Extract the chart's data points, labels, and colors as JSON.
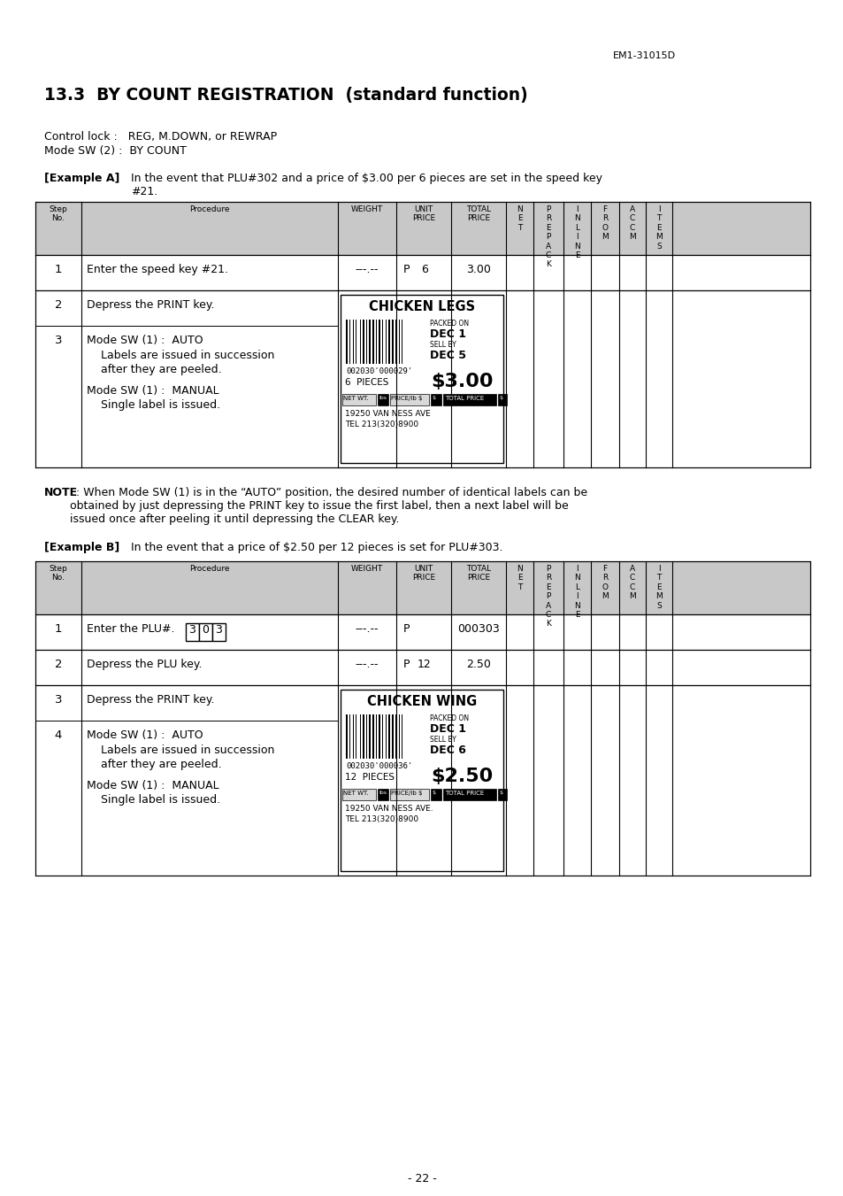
{
  "page_number": "- 22 -",
  "header_text": "EM1-31015D",
  "title": "13.3  BY COUNT REGISTRATION  (standard function)",
  "control_lock": "Control lock :   REG, M.DOWN, or REWRAP",
  "mode_sw": "Mode SW (2) :  BY COUNT",
  "example_a_label": "[Example A]",
  "example_a_text1": "In the event that PLU#302 and a price of $3.00 per 6 pieces are set in the speed key",
  "example_a_text2": "#21.",
  "note_bold": "NOTE",
  "note_rest": " : When Mode SW (1) is in the “AUTO” position, the desired number of identical labels can be",
  "note_line2": "   obtained by just depressing the PRINT key to issue the first label, then a next label will be",
  "note_line3": "   issued once after peeling it until depressing the CLEAR key.",
  "example_b_label": "[Example B]",
  "example_b_text": "In the event that a price of $2.50 per 12 pieces is set for PLU#303.",
  "bg_color": "#ffffff",
  "table_header_bg": "#c8c8c8"
}
